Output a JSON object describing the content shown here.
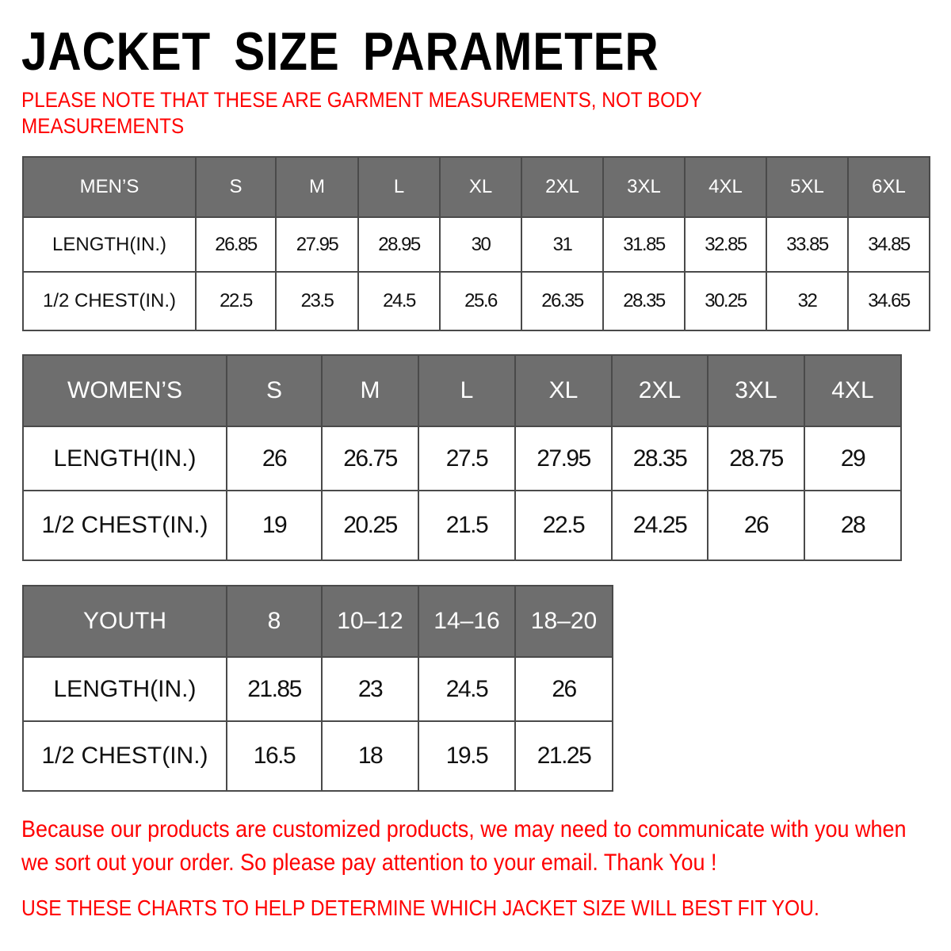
{
  "title": "JACKET SIZE PARAMETER",
  "note": "PLEASE NOTE THAT THESE ARE GARMENT MEASUREMENTS, NOT BODY MEASUREMENTS",
  "colors": {
    "header_bg": "#6e6e6e",
    "accent_red": "#ff0000"
  },
  "tables": {
    "men": {
      "headers": [
        "MEN’S",
        "S",
        "M",
        "L",
        "XL",
        "2XL",
        "3XL",
        "4XL",
        "5XL",
        "6XL"
      ],
      "rows": [
        [
          "LENGTH(IN.)",
          "26.85",
          "27.95",
          "28.95",
          "30",
          "31",
          "31.85",
          "32.85",
          "33.85",
          "34.85"
        ],
        [
          "1/2 CHEST(IN.)",
          "22.5",
          "23.5",
          "24.5",
          "25.6",
          "26.35",
          "28.35",
          "30.25",
          "32",
          "34.65"
        ]
      ]
    },
    "women": {
      "headers": [
        "WOMEN’S",
        "S",
        "M",
        "L",
        "XL",
        "2XL",
        "3XL",
        "4XL"
      ],
      "rows": [
        [
          "LENGTH(IN.)",
          "26",
          "26.75",
          "27.5",
          "27.95",
          "28.35",
          "28.75",
          "29"
        ],
        [
          "1/2 CHEST(IN.)",
          "19",
          "20.25",
          "21.5",
          "22.5",
          "24.25",
          "26",
          "28"
        ]
      ]
    },
    "youth": {
      "headers": [
        "YOUTH",
        "8",
        "10–12",
        "14–16",
        "18–20"
      ],
      "rows": [
        [
          "LENGTH(IN.)",
          "21.85",
          "23",
          "24.5",
          "26"
        ],
        [
          "1/2 CHEST(IN.)",
          "16.5",
          "18",
          "19.5",
          "21.25"
        ]
      ]
    }
  },
  "message": "Because our products are customized products, we may need to communicate with you when we sort out your order. So please pay attention to your email. Thank You !",
  "footer": "USE THESE CHARTS TO HELP DETERMINE WHICH JACKET SIZE WILL BEST FIT YOU."
}
